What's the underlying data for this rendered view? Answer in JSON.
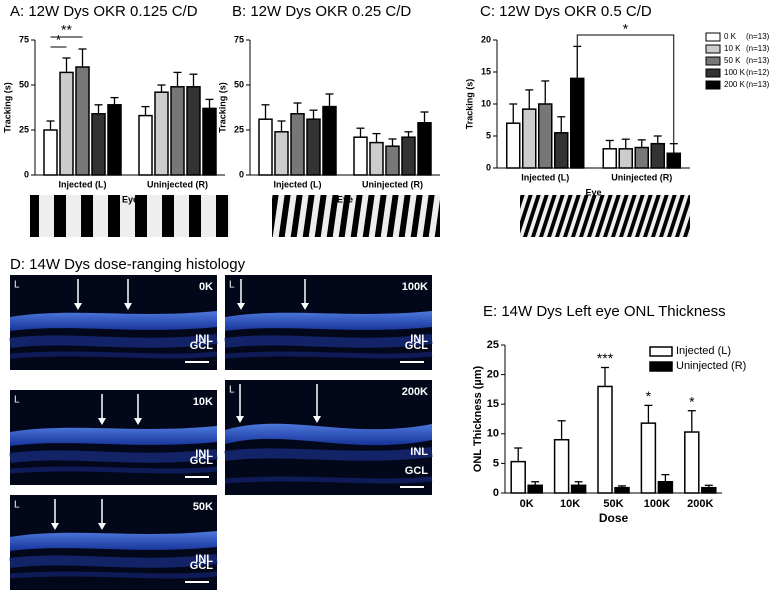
{
  "chart_data": [
    {
      "type": "bar",
      "title": "A: 12W Dys OKR 0.125 C/D",
      "ylabel": "Tracking (s)",
      "xlabel": "Eye",
      "categories": [
        "Injected (L)",
        "Uninjected (R)"
      ],
      "series": [
        {
          "color": "#ffffff",
          "values": [
            25,
            33
          ],
          "errors": [
            5,
            5
          ]
        },
        {
          "color": "#cccccc",
          "values": [
            57,
            46
          ],
          "errors": [
            8,
            4
          ]
        },
        {
          "color": "#777777",
          "values": [
            60,
            49
          ],
          "errors": [
            10,
            8
          ]
        },
        {
          "color": "#333333",
          "values": [
            34,
            49
          ],
          "errors": [
            5,
            7
          ]
        },
        {
          "color": "#000000",
          "values": [
            39,
            37
          ],
          "errors": [
            4,
            5
          ]
        }
      ],
      "ylim": [
        0,
        75
      ],
      "yticks": [
        0,
        25,
        50,
        75
      ],
      "annotations": [
        "*",
        "**"
      ]
    },
    {
      "type": "bar",
      "title": "B: 12W Dys OKR 0.25 C/D",
      "ylabel": "Tracking (s)",
      "xlabel": "Eye",
      "categories": [
        "Injected (L)",
        "Uninjected (R)"
      ],
      "series": [
        {
          "color": "#ffffff",
          "values": [
            31,
            21
          ],
          "errors": [
            8,
            5
          ]
        },
        {
          "color": "#cccccc",
          "values": [
            24,
            18
          ],
          "errors": [
            6,
            5
          ]
        },
        {
          "color": "#777777",
          "values": [
            34,
            16
          ],
          "errors": [
            6,
            4
          ]
        },
        {
          "color": "#333333",
          "values": [
            31,
            21
          ],
          "errors": [
            5,
            3
          ]
        },
        {
          "color": "#000000",
          "values": [
            38,
            29
          ],
          "errors": [
            7,
            6
          ]
        }
      ],
      "ylim": [
        0,
        75
      ],
      "yticks": [
        0,
        25,
        50,
        75
      ],
      "annotations": []
    },
    {
      "type": "bar",
      "title": "C: 12W Dys OKR 0.5 C/D",
      "ylabel": "Tracking (s)",
      "xlabel": "Eye",
      "categories": [
        "Injected (L)",
        "Uninjected (R)"
      ],
      "series": [
        {
          "name": "0 K",
          "n_label": "(n=13)",
          "color": "#ffffff",
          "values": [
            7,
            3
          ],
          "errors": [
            3,
            1.3
          ]
        },
        {
          "name": "10 K",
          "n_label": "(n=13)",
          "color": "#cccccc",
          "values": [
            9.2,
            3
          ],
          "errors": [
            3,
            1.5
          ]
        },
        {
          "name": "50 K",
          "n_label": "(n=13)",
          "color": "#777777",
          "values": [
            10,
            3.2
          ],
          "errors": [
            3.6,
            1.2
          ]
        },
        {
          "name": "100 K",
          "n_label": "(n=12)",
          "color": "#333333",
          "values": [
            5.5,
            3.8
          ],
          "errors": [
            2.5,
            1.2
          ]
        },
        {
          "name": "200 K",
          "n_label": "(n=13)",
          "color": "#000000",
          "values": [
            14,
            2.3
          ],
          "errors": [
            5,
            1.5
          ]
        }
      ],
      "ylim": [
        0,
        20
      ],
      "yticks": [
        0,
        5,
        10,
        15,
        20
      ],
      "annotations": [
        "*"
      ]
    },
    {
      "type": "bar",
      "title": "E: 14W Dys Left eye ONL Thickness",
      "ylabel": "ONL Thickness (µm)",
      "xlabel": "Dose",
      "categories": [
        "0K",
        "10K",
        "50K",
        "100K",
        "200K"
      ],
      "series": [
        {
          "name": "Injected (L)",
          "color": "#ffffff",
          "values": [
            5.3,
            9,
            18,
            11.8,
            10.3
          ],
          "errors": [
            2.3,
            3.2,
            3.2,
            3,
            3.6
          ]
        },
        {
          "name": "Uninjected (R)",
          "color": "#000000",
          "values": [
            1.3,
            1.3,
            0.9,
            1.9,
            0.9
          ],
          "errors": [
            0.6,
            0.6,
            0.3,
            1.2,
            0.4
          ]
        }
      ],
      "ylim": [
        0,
        25
      ],
      "yticks": [
        0,
        5,
        10,
        15,
        20,
        25
      ],
      "annotations": [
        "***",
        "*",
        "*"
      ]
    }
  ],
  "histology": {
    "title": "D: 14W Dys dose-ranging histology",
    "panels": [
      {
        "side": "L",
        "dose": "0K",
        "inl": "INL",
        "gcl": "GCL"
      },
      {
        "side": "L",
        "dose": "10K",
        "inl": "INL",
        "gcl": "GCL"
      },
      {
        "side": "L",
        "dose": "50K",
        "inl": "INL",
        "gcl": "GCL"
      },
      {
        "side": "L",
        "dose": "100K",
        "inl": "INL",
        "gcl": "GCL"
      },
      {
        "side": "L",
        "dose": "200K",
        "inl": "INL",
        "gcl": "GCL"
      }
    ]
  }
}
